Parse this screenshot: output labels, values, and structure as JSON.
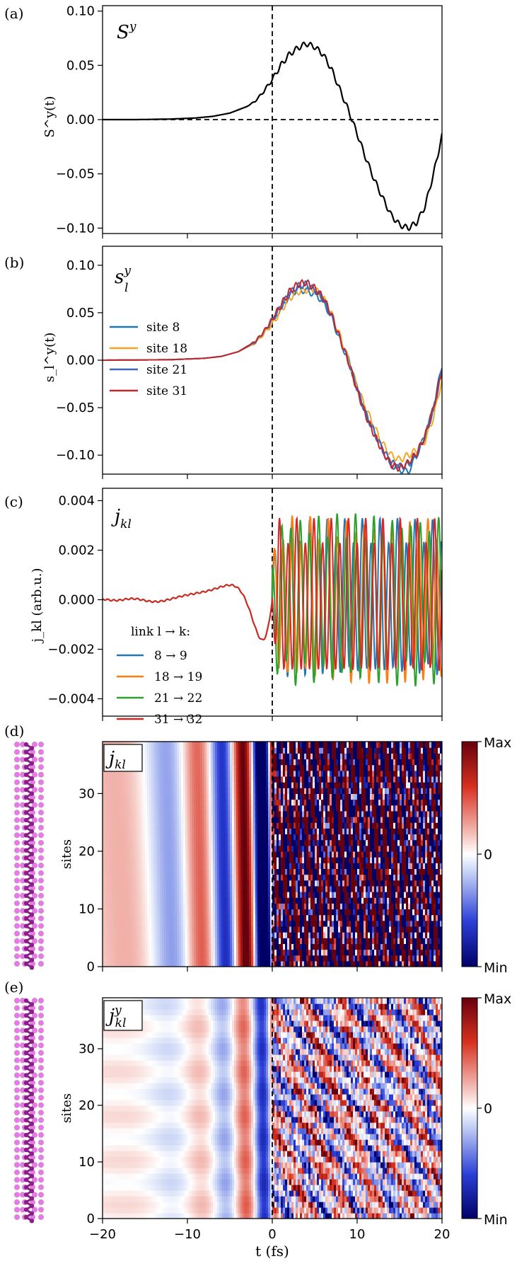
{
  "chart_data": [
    {
      "panel": "(a)",
      "type": "line",
      "title": "S^y",
      "title_main": "S",
      "title_sup": "y",
      "ylabel": "S^y(t)",
      "xlabel": "",
      "xlim": [
        -20,
        20
      ],
      "ylim": [
        -0.105,
        0.105
      ],
      "yticks": [
        "0.10",
        "0.05",
        "0.00",
        "−0.05",
        "−0.10"
      ],
      "ytick_values": [
        0.1,
        0.05,
        0.0,
        -0.05,
        -0.1
      ],
      "series": [
        {
          "name": "S^y",
          "color": "#000000",
          "x": [
            -20,
            -16,
            -12,
            -9,
            -7,
            -5,
            -4,
            -3,
            -2,
            -1,
            0,
            1,
            2,
            3,
            4,
            5,
            6,
            7,
            8,
            9,
            10,
            11,
            12,
            13,
            14,
            15,
            16,
            17,
            18,
            19,
            20
          ],
          "y": [
            0.0,
            0.0,
            0.0005,
            0.0015,
            0.003,
            0.006,
            0.009,
            0.012,
            0.017,
            0.026,
            0.037,
            0.05,
            0.06,
            0.066,
            0.07,
            0.067,
            0.06,
            0.046,
            0.027,
            0.008,
            -0.013,
            -0.035,
            -0.055,
            -0.072,
            -0.088,
            -0.097,
            -0.1,
            -0.095,
            -0.08,
            -0.05,
            -0.015
          ]
        }
      ]
    },
    {
      "panel": "(b)",
      "type": "line",
      "title": "s_l^y",
      "title_main": "s",
      "title_sup": "y",
      "title_sub": "l",
      "ylabel": "s_l^y(t)",
      "xlim": [
        -20,
        20
      ],
      "ylim": [
        -0.12,
        0.12
      ],
      "yticks": [
        "0.10",
        "0.05",
        "0.00",
        "−0.05",
        "−0.10"
      ],
      "ytick_values": [
        0.1,
        0.05,
        0.0,
        -0.05,
        -0.1
      ],
      "legend": [
        "site 8",
        "site 18",
        "site 21",
        "site 31"
      ],
      "series": [
        {
          "name": "site 8",
          "color": "#1f77b4",
          "x": [
            -20,
            -12,
            -8,
            -6,
            -4,
            -2,
            -1,
            0,
            1,
            2,
            3,
            4,
            5,
            6,
            7,
            8,
            9,
            10,
            11,
            12,
            13,
            14,
            15,
            16,
            17,
            18,
            19,
            20
          ],
          "y": [
            0,
            0.0005,
            0.002,
            0.004,
            0.009,
            0.018,
            0.028,
            0.04,
            0.055,
            0.068,
            0.075,
            0.073,
            0.07,
            0.062,
            0.045,
            0.02,
            0.0,
            -0.03,
            -0.055,
            -0.075,
            -0.095,
            -0.11,
            -0.115,
            -0.118,
            -0.1,
            -0.08,
            -0.05,
            -0.005
          ]
        },
        {
          "name": "site 18",
          "color": "#f5a623",
          "x": [
            -20,
            -12,
            -8,
            -6,
            -4,
            -2,
            -1,
            0,
            1,
            2,
            3,
            4,
            5,
            6,
            7,
            8,
            9,
            10,
            11,
            12,
            13,
            14,
            15,
            16,
            17,
            18,
            19,
            20
          ],
          "y": [
            0,
            0.0005,
            0.002,
            0.004,
            0.009,
            0.018,
            0.028,
            0.038,
            0.052,
            0.065,
            0.072,
            0.074,
            0.075,
            0.066,
            0.048,
            0.025,
            0.0,
            -0.028,
            -0.05,
            -0.07,
            -0.088,
            -0.1,
            -0.105,
            -0.1,
            -0.095,
            -0.085,
            -0.06,
            -0.02
          ]
        },
        {
          "name": "site 21",
          "color": "#3a66c4",
          "x": [
            -20,
            -12,
            -8,
            -6,
            -4,
            -2,
            -1,
            0,
            1,
            2,
            3,
            4,
            5,
            6,
            7,
            8,
            9,
            10,
            11,
            12,
            13,
            14,
            15,
            16,
            17,
            18,
            19,
            20
          ],
          "y": [
            0,
            0.0005,
            0.002,
            0.004,
            0.009,
            0.019,
            0.03,
            0.042,
            0.056,
            0.07,
            0.078,
            0.08,
            0.074,
            0.064,
            0.046,
            0.022,
            -0.002,
            -0.03,
            -0.056,
            -0.076,
            -0.094,
            -0.108,
            -0.112,
            -0.11,
            -0.1,
            -0.08,
            -0.052,
            -0.01
          ]
        },
        {
          "name": "site 31",
          "color": "#c0282d",
          "x": [
            -20,
            -12,
            -8,
            -6,
            -4,
            -2,
            -1,
            0,
            1,
            2,
            3,
            4,
            5,
            6,
            7,
            8,
            9,
            10,
            11,
            12,
            13,
            14,
            15,
            16,
            17,
            18,
            19,
            20
          ],
          "y": [
            0,
            0.0005,
            0.002,
            0.004,
            0.009,
            0.02,
            0.03,
            0.043,
            0.058,
            0.072,
            0.08,
            0.082,
            0.076,
            0.066,
            0.048,
            0.022,
            -0.002,
            -0.032,
            -0.058,
            -0.078,
            -0.096,
            -0.11,
            -0.114,
            -0.108,
            -0.098,
            -0.08,
            -0.05,
            -0.01
          ]
        }
      ]
    },
    {
      "panel": "(c)",
      "type": "line",
      "title": "j_kl",
      "title_main": "j",
      "title_sub": "kl",
      "ylabel": "j_kl (arb.u.)",
      "xlim": [
        -20,
        20
      ],
      "ylim": [
        -0.0047,
        0.0045
      ],
      "yticks": [
        "0.004",
        "0.002",
        "0.000",
        "−0.002",
        "−0.004"
      ],
      "ytick_values": [
        0.004,
        0.002,
        0.0,
        -0.002,
        -0.004
      ],
      "legend_title": "link l → k:",
      "legend": [
        "8 → 9",
        "18 → 19",
        "21 → 22",
        "31 → 32"
      ],
      "series": [
        {
          "name": "8 → 9",
          "color": "#1f77b4",
          "model": "oscillation",
          "amp_pre": 0.0022,
          "amp_post": 0.0028,
          "freq_post": 1.05,
          "phase": 0.0
        },
        {
          "name": "18 → 19",
          "color": "#ff7f0e",
          "model": "oscillation",
          "amp_pre": 0.0022,
          "amp_post": 0.0029,
          "freq_post": 1.02,
          "phase": 0.3
        },
        {
          "name": "21 → 22",
          "color": "#2ca02c",
          "model": "oscillation",
          "amp_pre": 0.0022,
          "amp_post": 0.003,
          "freq_post": 1.0,
          "phase": 1.4
        },
        {
          "name": "31 → 32",
          "color": "#d62728",
          "model": "oscillation",
          "amp_pre": 0.0022,
          "amp_post": 0.0028,
          "freq_post": 1.07,
          "phase": 2.6
        }
      ]
    },
    {
      "panel": "(d)",
      "type": "heatmap",
      "title": "j_kl",
      "title_main": "j",
      "title_sub": "kl",
      "ylabel": "sites",
      "xlim": [
        -20,
        20
      ],
      "ylim": [
        0,
        39
      ],
      "yticks": [
        "30",
        "20",
        "10",
        "0"
      ],
      "ytick_values": [
        30,
        20,
        10,
        0
      ],
      "colorbar": {
        "max": "Max",
        "mid": "0",
        "min": "Min"
      },
      "model": "stripes-strong"
    },
    {
      "panel": "(e)",
      "type": "heatmap",
      "title": "j_kl^y",
      "title_main": "j",
      "title_sub": "kl",
      "title_sup": "y",
      "ylabel": "sites",
      "xlabel": "t (fs)",
      "xlim": [
        -20,
        20
      ],
      "ylim": [
        0,
        39
      ],
      "yticks": [
        "30",
        "20",
        "10",
        "0"
      ],
      "ytick_values": [
        30,
        20,
        10,
        0
      ],
      "xticks": [
        "−20",
        "−10",
        "0",
        "10",
        "20"
      ],
      "xtick_values": [
        -20,
        -10,
        0,
        10,
        20
      ],
      "colorbar": {
        "max": "Max",
        "mid": "0",
        "min": "Min"
      },
      "model": "stripes-soft"
    }
  ],
  "colors": {
    "black": "#000000",
    "site_dot": "#e07fe0",
    "chain": "#8a1f8a"
  }
}
